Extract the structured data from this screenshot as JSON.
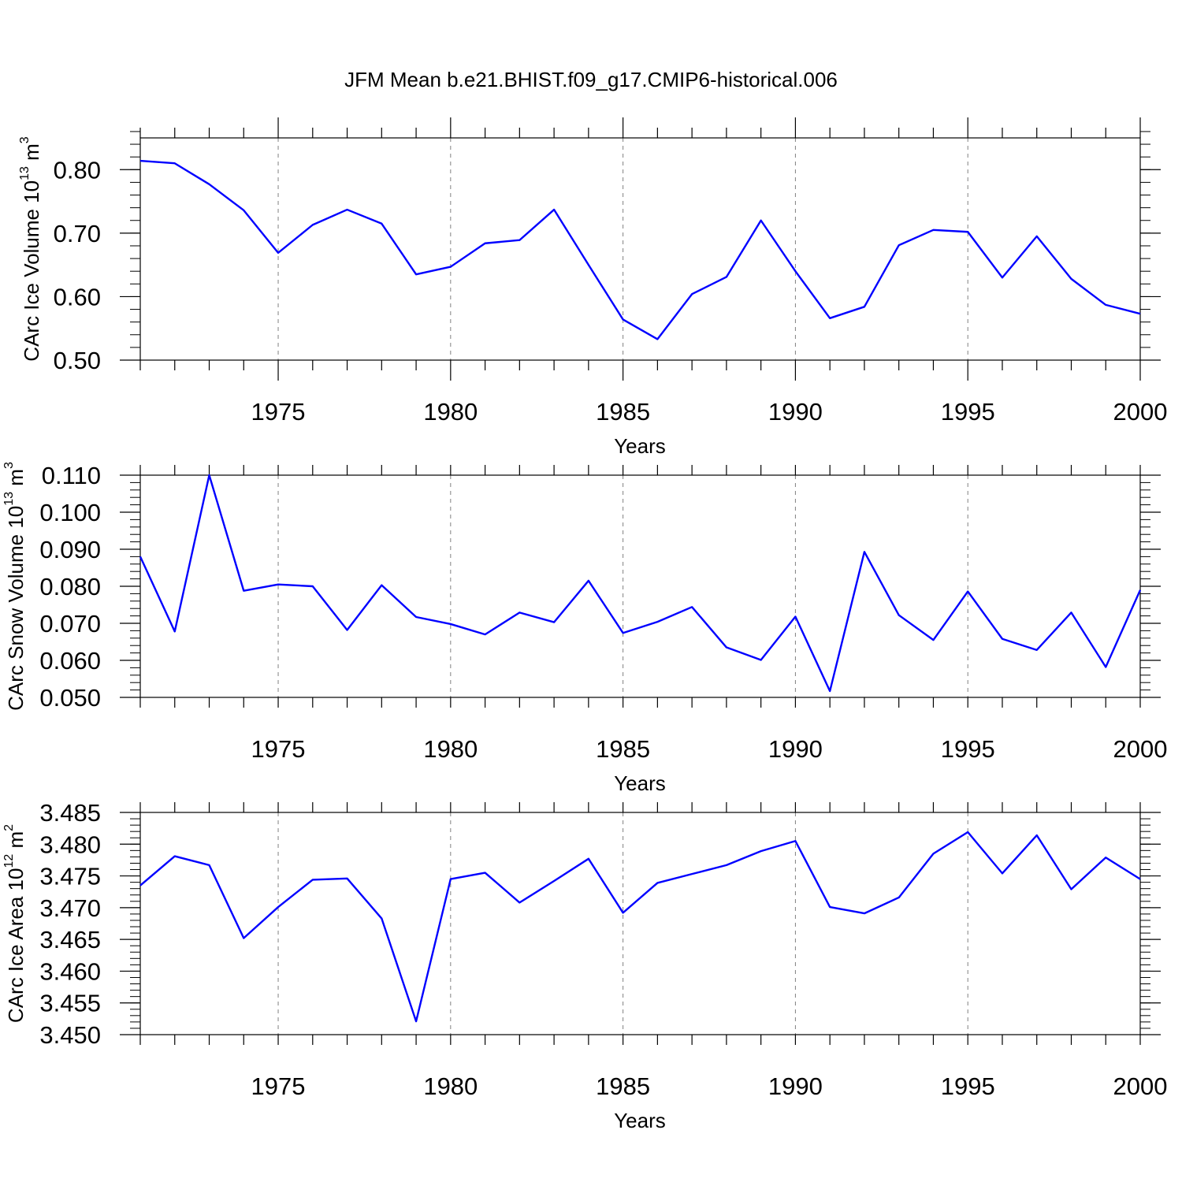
{
  "title": "JFM Mean b.e21.BHIST.f09_g17.CMIP6-historical.006",
  "colors": {
    "line": "#0000ff",
    "axis": "#000000",
    "grid": "#808080"
  },
  "chart_data": [
    {
      "type": "line",
      "title": "JFM Mean b.e21.BHIST.f09_g17.CMIP6-historical.006",
      "xlabel": "Years",
      "ylabel": {
        "main": "CArc Ice Volume 10",
        "exp": "13",
        "unit": " m",
        "unit_exp": "3"
      },
      "xlim": [
        1971,
        2000
      ],
      "ylim": [
        0.5,
        0.85
      ],
      "x_ticks": [
        1975,
        1980,
        1985,
        1990,
        1995,
        2000
      ],
      "x_tick_labels": [
        "1975",
        "1980",
        "1985",
        "1990",
        "1995",
        "2000"
      ],
      "y_ticks": [
        0.5,
        0.6,
        0.7,
        0.8
      ],
      "y_tick_labels": [
        "0.50",
        "0.60",
        "0.70",
        "0.80"
      ],
      "y_minor_step": 0.02,
      "grid": "vertical dashed at major x ticks",
      "x": [
        1971,
        1972,
        1973,
        1974,
        1975,
        1976,
        1977,
        1978,
        1979,
        1980,
        1981,
        1982,
        1983,
        1984,
        1985,
        1986,
        1987,
        1988,
        1989,
        1990,
        1991,
        1992,
        1993,
        1994,
        1995,
        1996,
        1997,
        1998,
        1999,
        2000
      ],
      "values": [
        0.814,
        0.81,
        0.777,
        0.736,
        0.669,
        0.713,
        0.737,
        0.715,
        0.635,
        0.647,
        0.684,
        0.689,
        0.737,
        0.65,
        0.564,
        0.533,
        0.604,
        0.631,
        0.72,
        0.64,
        0.566,
        0.584,
        0.681,
        0.705,
        0.702,
        0.63,
        0.695,
        0.628,
        0.587,
        0.573
      ]
    },
    {
      "type": "line",
      "xlabel": "Years",
      "ylabel": {
        "main": "CArc Snow Volume 10",
        "exp": "13",
        "unit": " m",
        "unit_exp": "3"
      },
      "xlim": [
        1971,
        2000
      ],
      "ylim": [
        0.05,
        0.11
      ],
      "x_ticks": [
        1975,
        1980,
        1985,
        1990,
        1995,
        2000
      ],
      "x_tick_labels": [
        "1975",
        "1980",
        "1985",
        "1990",
        "1995",
        "2000"
      ],
      "y_ticks": [
        0.05,
        0.06,
        0.07,
        0.08,
        0.09,
        0.1,
        0.11
      ],
      "y_tick_labels": [
        "0.050",
        "0.060",
        "0.070",
        "0.080",
        "0.090",
        "0.100",
        "0.110"
      ],
      "y_minor_step": 0.002,
      "grid": "vertical dashed at major x ticks",
      "x": [
        1971,
        1972,
        1973,
        1974,
        1975,
        1976,
        1977,
        1978,
        1979,
        1980,
        1981,
        1982,
        1983,
        1984,
        1985,
        1986,
        1987,
        1988,
        1989,
        1990,
        1991,
        1992,
        1993,
        1994,
        1995,
        1996,
        1997,
        1998,
        1999,
        2000
      ],
      "values": [
        0.088,
        0.0678,
        0.11,
        0.0788,
        0.0805,
        0.08,
        0.0682,
        0.0803,
        0.0717,
        0.0698,
        0.067,
        0.0729,
        0.0703,
        0.0815,
        0.0674,
        0.0704,
        0.0744,
        0.0635,
        0.0601,
        0.0718,
        0.0517,
        0.0893,
        0.0722,
        0.0655,
        0.0786,
        0.0658,
        0.0628,
        0.0729,
        0.0582,
        0.079
      ]
    },
    {
      "type": "line",
      "xlabel": "Years",
      "ylabel": {
        "main": "CArc Ice Area 10",
        "exp": "12",
        "unit": " m",
        "unit_exp": "2"
      },
      "xlim": [
        1971,
        2000
      ],
      "ylim": [
        3.45,
        3.485
      ],
      "x_ticks": [
        1975,
        1980,
        1985,
        1990,
        1995,
        2000
      ],
      "x_tick_labels": [
        "1975",
        "1980",
        "1985",
        "1990",
        "1995",
        "2000"
      ],
      "y_ticks": [
        3.45,
        3.455,
        3.46,
        3.465,
        3.47,
        3.475,
        3.48,
        3.485
      ],
      "y_tick_labels": [
        "3.450",
        "3.455",
        "3.460",
        "3.465",
        "3.470",
        "3.475",
        "3.480",
        "3.485"
      ],
      "y_minor_step": 0.001,
      "grid": "vertical dashed at major x ticks",
      "x": [
        1971,
        1972,
        1973,
        1974,
        1975,
        1976,
        1977,
        1978,
        1979,
        1980,
        1981,
        1982,
        1983,
        1984,
        1985,
        1986,
        1987,
        1988,
        1989,
        1990,
        1991,
        1992,
        1993,
        1994,
        1995,
        1996,
        1997,
        1998,
        1999,
        2000
      ],
      "values": [
        3.4735,
        3.4781,
        3.4767,
        3.4652,
        3.4701,
        3.4744,
        3.4746,
        3.4683,
        3.4521,
        3.4745,
        3.4755,
        3.4708,
        3.4742,
        3.4777,
        3.4692,
        3.4739,
        3.4753,
        3.4767,
        3.4789,
        3.4805,
        3.4701,
        3.4691,
        3.4716,
        3.4785,
        3.4819,
        3.4754,
        3.4814,
        3.4729,
        3.4779,
        3.4745
      ]
    }
  ]
}
